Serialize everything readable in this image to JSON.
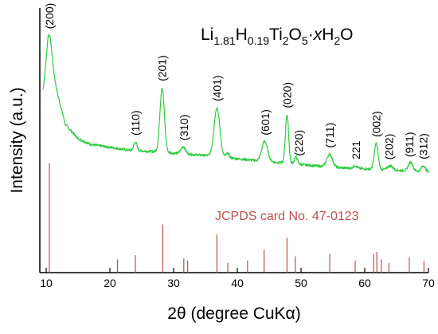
{
  "chart_data": {
    "type": "line",
    "title": "",
    "compound": {
      "p1": "Li",
      "s1": "1.81",
      "p2": "H",
      "s2": "0.19",
      "p3": "Ti",
      "s3": "2",
      "p4": "O",
      "s4": "5",
      "p5": "·",
      "p6": "x",
      "p7": "H",
      "s7": "2",
      "p8": "O"
    },
    "xlabel": "2θ (degree CuKα)",
    "ylabel": "Intensity (a.u.)",
    "xlim": [
      9,
      70
    ],
    "x_ticks": [
      10,
      20,
      30,
      40,
      50,
      60,
      70
    ],
    "x_tick_labels": [
      "10",
      "20",
      "30",
      "40",
      "50",
      "60",
      "70"
    ],
    "trace_color": "#2ecc40",
    "reference_color": "#c0504d",
    "reference_label": "JCPDS card No. 47-0123",
    "series": [
      {
        "name": "",
        "baseline": [
          [
            9.5,
            0.62
          ],
          [
            10.3,
            0.78
          ],
          [
            11.5,
            0.66
          ],
          [
            13,
            0.4
          ],
          [
            15,
            0.3
          ],
          [
            17,
            0.26
          ],
          [
            20,
            0.24
          ],
          [
            23,
            0.22
          ],
          [
            27,
            0.21
          ],
          [
            30,
            0.2
          ],
          [
            33,
            0.19
          ],
          [
            36,
            0.18
          ],
          [
            40,
            0.16
          ],
          [
            45,
            0.14
          ],
          [
            50,
            0.12
          ],
          [
            55,
            0.1
          ],
          [
            60,
            0.09
          ],
          [
            65,
            0.08
          ],
          [
            70,
            0.07
          ]
        ],
        "peaks": [
          {
            "x": 10.5,
            "height": 0.26,
            "width": 0.45
          },
          {
            "x": 24.0,
            "height": 0.06,
            "width": 0.25
          },
          {
            "x": 28.2,
            "height": 0.45,
            "width": 0.35
          },
          {
            "x": 31.5,
            "height": 0.05,
            "width": 0.35
          },
          {
            "x": 36.8,
            "height": 0.34,
            "width": 0.45
          },
          {
            "x": 38.5,
            "height": 0.03,
            "width": 0.25
          },
          {
            "x": 44.3,
            "height": 0.14,
            "width": 0.45
          },
          {
            "x": 47.8,
            "height": 0.34,
            "width": 0.25
          },
          {
            "x": 49.2,
            "height": 0.05,
            "width": 0.25
          },
          {
            "x": 54.5,
            "height": 0.09,
            "width": 0.45
          },
          {
            "x": 58.5,
            "height": 0.02,
            "width": 0.3
          },
          {
            "x": 61.8,
            "height": 0.18,
            "width": 0.3
          },
          {
            "x": 64.0,
            "height": 0.03,
            "width": 0.4
          },
          {
            "x": 67.2,
            "height": 0.06,
            "width": 0.35
          },
          {
            "x": 69.2,
            "height": 0.04,
            "width": 0.3
          }
        ]
      }
    ],
    "peak_labels": [
      {
        "text": "(200)",
        "x": 10.5
      },
      {
        "text": "(110)",
        "x": 24.0
      },
      {
        "text": "(201)",
        "x": 28.2
      },
      {
        "text": "(310)",
        "x": 31.6
      },
      {
        "text": "(401)",
        "x": 36.8
      },
      {
        "text": "(601)",
        "x": 44.4
      },
      {
        "text": "(020)",
        "x": 47.8
      },
      {
        "text": "(220)",
        "x": 49.6
      },
      {
        "text": "(711)",
        "x": 54.5
      },
      {
        "text": "221",
        "x": 58.6
      },
      {
        "text": "(002)",
        "x": 61.8
      },
      {
        "text": "(202)",
        "x": 63.8
      },
      {
        "text": "(911)",
        "x": 67.0
      },
      {
        "text": "(312)",
        "x": 69.2
      }
    ],
    "reference_lines": [
      {
        "x": 10.5,
        "rel": 1.0
      },
      {
        "x": 21.2,
        "rel": 0.12
      },
      {
        "x": 24.0,
        "rel": 0.16
      },
      {
        "x": 28.3,
        "rel": 0.44
      },
      {
        "x": 31.6,
        "rel": 0.13
      },
      {
        "x": 32.2,
        "rel": 0.11
      },
      {
        "x": 36.8,
        "rel": 0.35
      },
      {
        "x": 38.5,
        "rel": 0.09
      },
      {
        "x": 41.6,
        "rel": 0.11
      },
      {
        "x": 44.2,
        "rel": 0.21
      },
      {
        "x": 47.8,
        "rel": 0.32
      },
      {
        "x": 49.1,
        "rel": 0.15
      },
      {
        "x": 54.5,
        "rel": 0.17
      },
      {
        "x": 58.5,
        "rel": 0.11
      },
      {
        "x": 61.4,
        "rel": 0.17
      },
      {
        "x": 61.9,
        "rel": 0.19
      },
      {
        "x": 62.6,
        "rel": 0.12
      },
      {
        "x": 63.8,
        "rel": 0.09
      },
      {
        "x": 67.0,
        "rel": 0.14
      },
      {
        "x": 69.3,
        "rel": 0.11
      }
    ]
  }
}
